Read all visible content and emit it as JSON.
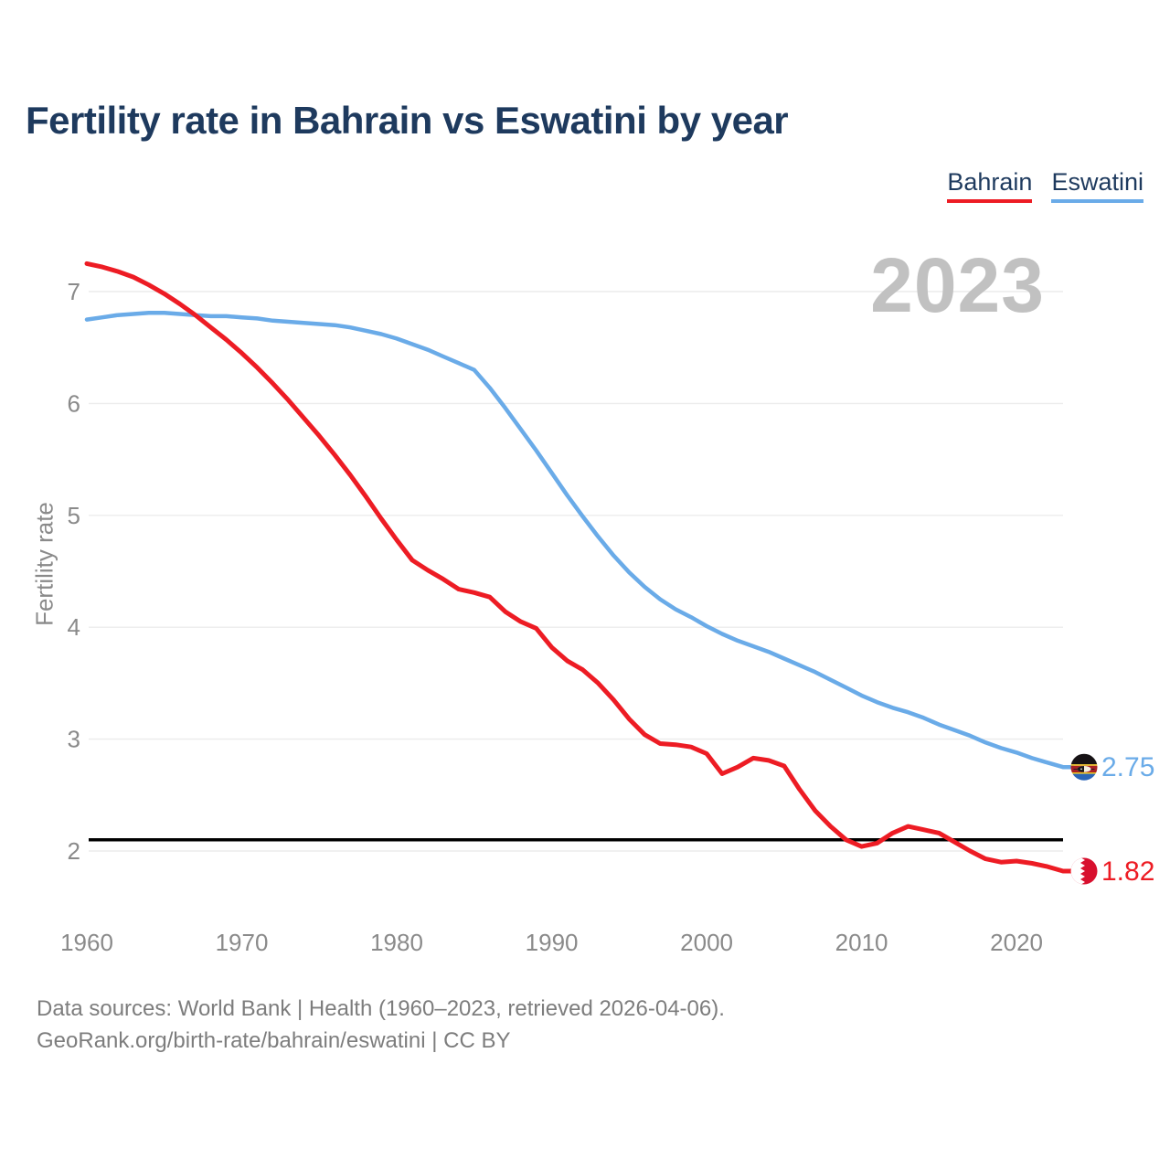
{
  "header": {
    "title": "Fertility rate in Bahrain vs Eswatini by year"
  },
  "legend": {
    "items": [
      {
        "label": "Bahrain",
        "color": "#ed1c24"
      },
      {
        "label": "Eswatini",
        "color": "#6aabe8"
      }
    ]
  },
  "watermark": {
    "year": "2023"
  },
  "chart_data": {
    "type": "line",
    "title": "Fertility rate in Bahrain vs Eswatini by year",
    "xlabel": "",
    "ylabel": "Fertility rate",
    "xlim": [
      1960,
      2023
    ],
    "ylim": [
      1.6,
      7.45
    ],
    "grid": "horizontal-only",
    "legend_position": "top-right",
    "yticks": [
      7,
      6,
      5,
      4,
      3,
      2
    ],
    "xticks": [
      1960,
      1970,
      1980,
      1990,
      2000,
      2010,
      2020
    ],
    "reference_line": {
      "value": 2.1,
      "color": "#000000"
    },
    "x": [
      1960,
      1961,
      1962,
      1963,
      1964,
      1965,
      1966,
      1967,
      1968,
      1969,
      1970,
      1971,
      1972,
      1973,
      1974,
      1975,
      1976,
      1977,
      1978,
      1979,
      1980,
      1981,
      1982,
      1983,
      1984,
      1985,
      1986,
      1987,
      1988,
      1989,
      1990,
      1991,
      1992,
      1993,
      1994,
      1995,
      1996,
      1997,
      1998,
      1999,
      2000,
      2001,
      2002,
      2003,
      2004,
      2005,
      2006,
      2007,
      2008,
      2009,
      2010,
      2011,
      2012,
      2013,
      2014,
      2015,
      2016,
      2017,
      2018,
      2019,
      2020,
      2021,
      2022,
      2023
    ],
    "series": [
      {
        "name": "Bahrain",
        "color": "#ed1c24",
        "end_label": "1.82",
        "flag_icon": "bahrain-flag-icon",
        "values": [
          7.25,
          7.22,
          7.18,
          7.13,
          7.06,
          6.98,
          6.89,
          6.79,
          6.68,
          6.57,
          6.45,
          6.32,
          6.18,
          6.03,
          5.87,
          5.71,
          5.54,
          5.36,
          5.17,
          4.97,
          4.78,
          4.6,
          4.51,
          4.43,
          4.34,
          4.31,
          4.27,
          4.14,
          4.05,
          3.99,
          3.82,
          3.7,
          3.62,
          3.5,
          3.35,
          3.18,
          3.04,
          2.96,
          2.95,
          2.93,
          2.87,
          2.69,
          2.75,
          2.83,
          2.81,
          2.76,
          2.55,
          2.36,
          2.22,
          2.1,
          2.04,
          2.07,
          2.16,
          2.22,
          2.19,
          2.16,
          2.08,
          2.0,
          1.93,
          1.9,
          1.91,
          1.89,
          1.86,
          1.82
        ]
      },
      {
        "name": "Eswatini",
        "color": "#6aabe8",
        "end_label": "2.75",
        "flag_icon": "eswatini-flag-icon",
        "values": [
          6.75,
          6.77,
          6.79,
          6.8,
          6.81,
          6.81,
          6.8,
          6.79,
          6.78,
          6.78,
          6.77,
          6.76,
          6.74,
          6.73,
          6.72,
          6.71,
          6.7,
          6.68,
          6.65,
          6.62,
          6.58,
          6.53,
          6.48,
          6.42,
          6.36,
          6.3,
          6.14,
          5.96,
          5.77,
          5.58,
          5.38,
          5.18,
          4.99,
          4.81,
          4.64,
          4.49,
          4.36,
          4.25,
          4.16,
          4.09,
          4.01,
          3.94,
          3.88,
          3.83,
          3.78,
          3.72,
          3.66,
          3.6,
          3.53,
          3.46,
          3.39,
          3.33,
          3.28,
          3.24,
          3.19,
          3.13,
          3.08,
          3.03,
          2.97,
          2.92,
          2.88,
          2.83,
          2.79,
          2.75
        ]
      }
    ]
  },
  "footer": {
    "line1": "Data sources: World Bank | Health (1960–2023, retrieved 2026-04-06).",
    "line2": "GeoRank.org/birth-rate/bahrain/eswatini | CC BY"
  },
  "colors": {
    "title": "#1e3a5e",
    "axis_text": "#8a8a8a",
    "gridline": "#ececec",
    "watermark": "#c1c1c1",
    "background": "#ffffff"
  }
}
